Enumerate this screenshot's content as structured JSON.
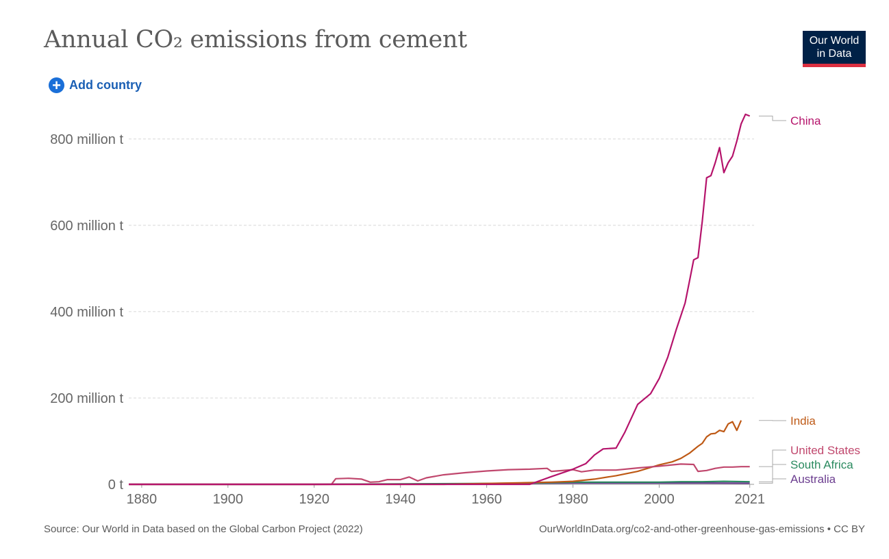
{
  "header": {
    "title": "Annual CO₂ emissions from cement",
    "logo_line1": "Our World",
    "logo_line2": "in Data",
    "add_country_label": "Add country"
  },
  "footer": {
    "source": "Source: Our World in Data based on the Global Carbon Project (2022)",
    "link": "OurWorldInData.org/co2-and-other-greenhouse-gas-emissions • CC BY"
  },
  "chart_data": {
    "type": "line",
    "title": "Annual CO₂ emissions from cement",
    "xlim": [
      1877,
      2022
    ],
    "ylim": [
      0,
      860
    ],
    "y_ticks": [
      {
        "value": 0,
        "label": "0 t"
      },
      {
        "value": 200,
        "label": "200 million t"
      },
      {
        "value": 400,
        "label": "400 million t"
      },
      {
        "value": 600,
        "label": "600 million t"
      },
      {
        "value": 800,
        "label": "800 million t"
      }
    ],
    "x_ticks": [
      {
        "value": 1880,
        "label": "1880"
      },
      {
        "value": 1900,
        "label": "1900"
      },
      {
        "value": 1920,
        "label": "1920"
      },
      {
        "value": 1940,
        "label": "1940"
      },
      {
        "value": 1960,
        "label": "1960"
      },
      {
        "value": 1980,
        "label": "1980"
      },
      {
        "value": 2000,
        "label": "2000"
      },
      {
        "value": 2021,
        "label": "2021"
      }
    ],
    "grid": "horizontal-dashed",
    "legend": "right",
    "series": [
      {
        "name": "China",
        "color": "#b5136b",
        "points": [
          [
            1877,
            0
          ],
          [
            1970,
            0
          ],
          [
            1975,
            18
          ],
          [
            1980,
            35
          ],
          [
            1983,
            48
          ],
          [
            1985,
            68
          ],
          [
            1987,
            82
          ],
          [
            1990,
            84
          ],
          [
            1992,
            120
          ],
          [
            1995,
            185
          ],
          [
            1998,
            210
          ],
          [
            2000,
            245
          ],
          [
            2002,
            295
          ],
          [
            2004,
            360
          ],
          [
            2006,
            420
          ],
          [
            2007,
            470
          ],
          [
            2008,
            520
          ],
          [
            2009,
            525
          ],
          [
            2010,
            610
          ],
          [
            2011,
            710
          ],
          [
            2012,
            715
          ],
          [
            2013,
            745
          ],
          [
            2014,
            780
          ],
          [
            2015,
            722
          ],
          [
            2016,
            745
          ],
          [
            2017,
            760
          ],
          [
            2018,
            795
          ],
          [
            2019,
            835
          ],
          [
            2020,
            857
          ],
          [
            2021,
            853
          ]
        ]
      },
      {
        "name": "India",
        "color": "#be5915",
        "points": [
          [
            1877,
            0
          ],
          [
            1950,
            0
          ],
          [
            1960,
            2
          ],
          [
            1970,
            4
          ],
          [
            1975,
            5
          ],
          [
            1980,
            7
          ],
          [
            1985,
            12
          ],
          [
            1990,
            20
          ],
          [
            1995,
            30
          ],
          [
            2000,
            45
          ],
          [
            2003,
            52
          ],
          [
            2005,
            60
          ],
          [
            2007,
            72
          ],
          [
            2009,
            88
          ],
          [
            2010,
            95
          ],
          [
            2011,
            110
          ],
          [
            2012,
            117
          ],
          [
            2013,
            118
          ],
          [
            2014,
            125
          ],
          [
            2015,
            122
          ],
          [
            2016,
            140
          ],
          [
            2017,
            145
          ],
          [
            2018,
            125
          ],
          [
            2019,
            148
          ]
        ]
      },
      {
        "name": "United States",
        "color": "#c0476d",
        "points": [
          [
            1877,
            0
          ],
          [
            1924,
            0
          ],
          [
            1925,
            13
          ],
          [
            1928,
            14
          ],
          [
            1931,
            12
          ],
          [
            1933,
            5
          ],
          [
            1935,
            6
          ],
          [
            1937,
            11
          ],
          [
            1940,
            11
          ],
          [
            1942,
            17
          ],
          [
            1944,
            8
          ],
          [
            1946,
            15
          ],
          [
            1950,
            22
          ],
          [
            1955,
            27
          ],
          [
            1960,
            31
          ],
          [
            1965,
            34
          ],
          [
            1970,
            35
          ],
          [
            1974,
            37
          ],
          [
            1975,
            30
          ],
          [
            1980,
            34
          ],
          [
            1982,
            29
          ],
          [
            1985,
            33
          ],
          [
            1990,
            33
          ],
          [
            1995,
            38
          ],
          [
            2000,
            42
          ],
          [
            2005,
            47
          ],
          [
            2008,
            46
          ],
          [
            2009,
            30
          ],
          [
            2011,
            32
          ],
          [
            2013,
            37
          ],
          [
            2015,
            40
          ],
          [
            2017,
            40
          ],
          [
            2019,
            41
          ],
          [
            2021,
            41
          ]
        ]
      },
      {
        "name": "South Africa",
        "color": "#2a8a5f",
        "points": [
          [
            1877,
            0
          ],
          [
            1920,
            0
          ],
          [
            1940,
            1
          ],
          [
            1960,
            2
          ],
          [
            1970,
            3
          ],
          [
            1980,
            5
          ],
          [
            1990,
            5
          ],
          [
            2000,
            5
          ],
          [
            2005,
            6
          ],
          [
            2010,
            6
          ],
          [
            2015,
            7
          ],
          [
            2021,
            6
          ]
        ]
      },
      {
        "name": "Australia",
        "color": "#6b3d8f",
        "points": [
          [
            1877,
            0
          ],
          [
            1920,
            0
          ],
          [
            1940,
            0.5
          ],
          [
            1960,
            1.5
          ],
          [
            1970,
            2.5
          ],
          [
            1980,
            3
          ],
          [
            1990,
            3
          ],
          [
            2000,
            3
          ],
          [
            2010,
            3
          ],
          [
            2021,
            2.5
          ]
        ]
      }
    ]
  }
}
